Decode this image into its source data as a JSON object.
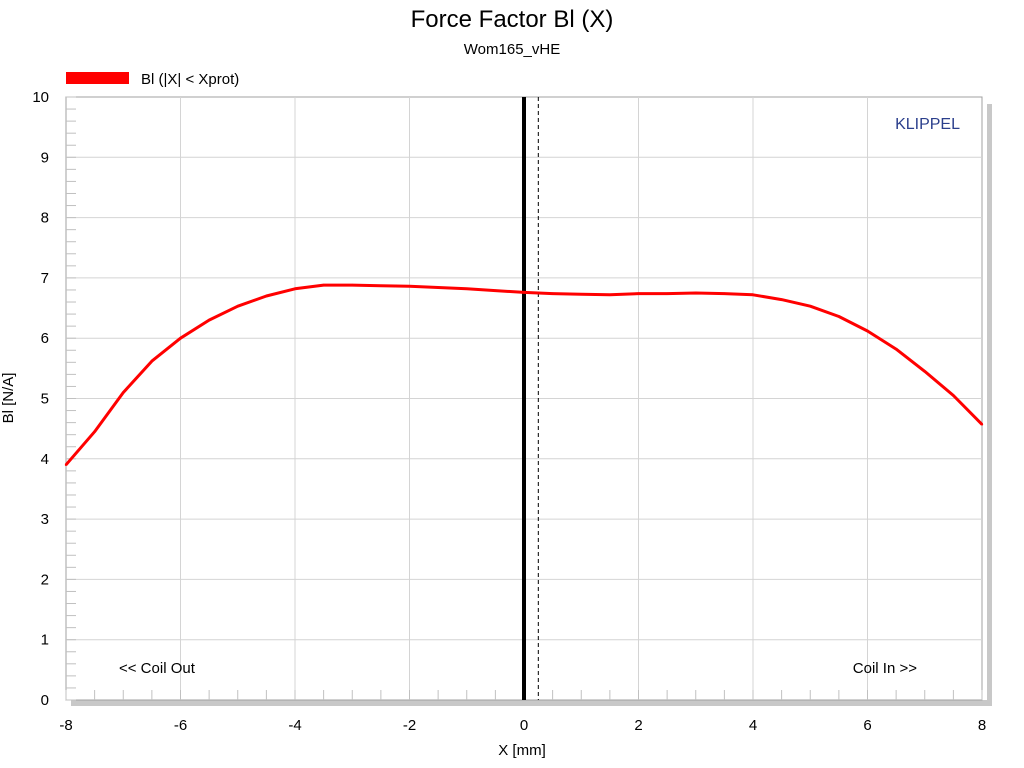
{
  "chart_data": {
    "type": "line",
    "title": "Force Factor Bl (X)",
    "subtitle": "Wom165_vHE",
    "xlabel": "X [mm]",
    "ylabel": "Bl [N/A]",
    "xlim": [
      -8,
      8
    ],
    "ylim": [
      0,
      10
    ],
    "x_ticks": [
      -8,
      -6,
      -4,
      -2,
      0,
      2,
      4,
      6,
      8
    ],
    "y_ticks": [
      0,
      1,
      2,
      3,
      4,
      5,
      6,
      7,
      8,
      9,
      10
    ],
    "grid": true,
    "legend_position": "top-left",
    "series": [
      {
        "name": "Bl (|X| < Xprot)",
        "color": "#ff0000",
        "x": [
          -8.0,
          -7.5,
          -7.0,
          -6.5,
          -6.0,
          -5.5,
          -5.0,
          -4.5,
          -4.0,
          -3.5,
          -3.0,
          -2.5,
          -2.0,
          -1.5,
          -1.0,
          -0.5,
          0.0,
          0.5,
          1.0,
          1.5,
          2.0,
          2.5,
          3.0,
          3.5,
          4.0,
          4.5,
          5.0,
          5.5,
          6.0,
          6.5,
          7.0,
          7.5,
          8.0
        ],
        "y": [
          3.9,
          4.45,
          5.1,
          5.62,
          6.0,
          6.3,
          6.53,
          6.7,
          6.82,
          6.88,
          6.88,
          6.87,
          6.86,
          6.84,
          6.82,
          6.79,
          6.76,
          6.74,
          6.73,
          6.72,
          6.74,
          6.74,
          6.75,
          6.74,
          6.72,
          6.64,
          6.53,
          6.36,
          6.12,
          5.82,
          5.45,
          5.05,
          4.57
        ]
      }
    ],
    "reference_lines": [
      {
        "x": 0,
        "style": "solid",
        "color": "#000000"
      },
      {
        "x": 0.25,
        "style": "dashed",
        "color": "#000000"
      }
    ],
    "annotations": {
      "left": "<< Coil Out",
      "right": "Coil In >>",
      "brand": "KLIPPEL"
    }
  }
}
